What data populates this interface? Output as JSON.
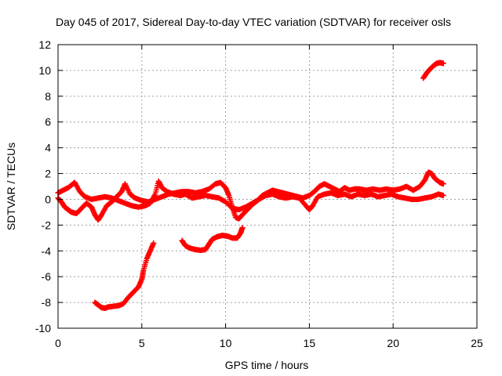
{
  "chart_data": {
    "type": "scatter",
    "title": "Day 045 of 2017, Sidereal Day-to-day VTEC variation (SDTVAR) for receiver osls",
    "xlabel": "GPS time / hours",
    "ylabel": "SDTVAR / TECUs",
    "xlim": [
      0,
      25
    ],
    "ylim": [
      -10,
      12
    ],
    "xticks": [
      0,
      5,
      10,
      15,
      20,
      25
    ],
    "yticks": [
      -10,
      -8,
      -6,
      -4,
      -2,
      0,
      2,
      4,
      6,
      8,
      10,
      12
    ],
    "grid": true,
    "marker": "plus",
    "color": "#ff0000",
    "series": [
      {
        "name": "upper satellite arc",
        "points": [
          [
            21.8,
            9.4
          ],
          [
            22.0,
            9.8
          ],
          [
            22.2,
            10.1
          ],
          [
            22.4,
            10.35
          ],
          [
            22.6,
            10.55
          ],
          [
            22.8,
            10.6
          ],
          [
            23.0,
            10.55
          ]
        ]
      },
      {
        "name": "low arc morning",
        "points": [
          [
            2.2,
            -8.0
          ],
          [
            2.4,
            -8.2
          ],
          [
            2.6,
            -8.4
          ],
          [
            2.8,
            -8.45
          ],
          [
            3.0,
            -8.35
          ],
          [
            3.3,
            -8.3
          ],
          [
            3.6,
            -8.25
          ],
          [
            3.9,
            -8.1
          ],
          [
            4.2,
            -7.6
          ],
          [
            4.5,
            -7.2
          ],
          [
            4.8,
            -6.8
          ],
          [
            5.0,
            -6.2
          ],
          [
            5.1,
            -5.5
          ],
          [
            5.3,
            -4.6
          ],
          [
            5.5,
            -4.0
          ],
          [
            5.7,
            -3.4
          ]
        ]
      },
      {
        "name": "mid arc",
        "points": [
          [
            7.4,
            -3.2
          ],
          [
            7.6,
            -3.6
          ],
          [
            7.9,
            -3.8
          ],
          [
            8.2,
            -3.9
          ],
          [
            8.5,
            -3.95
          ],
          [
            8.8,
            -3.9
          ],
          [
            9.0,
            -3.5
          ],
          [
            9.2,
            -3.1
          ],
          [
            9.5,
            -2.9
          ],
          [
            9.8,
            -2.8
          ],
          [
            10.1,
            -2.85
          ],
          [
            10.4,
            -3.0
          ],
          [
            10.7,
            -3.0
          ],
          [
            10.9,
            -2.6
          ],
          [
            11.0,
            -2.2
          ]
        ]
      },
      {
        "name": "near-zero arc A",
        "points": [
          [
            0.0,
            0.1
          ],
          [
            0.2,
            -0.2
          ],
          [
            0.4,
            -0.6
          ],
          [
            0.6,
            -0.8
          ],
          [
            0.8,
            -1.0
          ],
          [
            1.1,
            -1.1
          ],
          [
            1.4,
            -0.7
          ],
          [
            1.7,
            -0.3
          ],
          [
            2.0,
            -0.6
          ],
          [
            2.2,
            -1.2
          ],
          [
            2.4,
            -1.6
          ],
          [
            2.6,
            -1.2
          ],
          [
            2.9,
            -0.5
          ],
          [
            3.2,
            -0.2
          ],
          [
            3.5,
            0.2
          ],
          [
            3.8,
            0.6
          ],
          [
            4.0,
            1.2
          ],
          [
            4.3,
            0.4
          ],
          [
            4.6,
            0.1
          ],
          [
            5.0,
            -0.1
          ],
          [
            5.4,
            -0.2
          ],
          [
            5.8,
            0.0
          ],
          [
            6.2,
            0.2
          ],
          [
            6.6,
            0.4
          ],
          [
            7.0,
            0.5
          ],
          [
            7.4,
            0.6
          ],
          [
            7.8,
            0.6
          ],
          [
            8.2,
            0.5
          ],
          [
            8.6,
            0.6
          ],
          [
            9.0,
            0.8
          ],
          [
            9.4,
            1.2
          ],
          [
            9.7,
            1.3
          ],
          [
            10.0,
            0.9
          ],
          [
            10.2,
            0.3
          ],
          [
            10.4,
            -0.6
          ],
          [
            10.6,
            -1.4
          ],
          [
            10.8,
            -1.5
          ],
          [
            11.0,
            -1.2
          ],
          [
            11.3,
            -0.8
          ],
          [
            11.6,
            -0.4
          ],
          [
            11.9,
            -0.1
          ],
          [
            12.2,
            0.3
          ],
          [
            12.5,
            0.5
          ],
          [
            12.8,
            0.7
          ],
          [
            13.1,
            0.6
          ],
          [
            13.4,
            0.5
          ],
          [
            13.7,
            0.4
          ],
          [
            14.0,
            0.3
          ],
          [
            14.3,
            0.2
          ],
          [
            14.6,
            0.1
          ],
          [
            15.0,
            0.3
          ],
          [
            15.3,
            0.6
          ],
          [
            15.6,
            1.0
          ],
          [
            15.9,
            1.2
          ],
          [
            16.2,
            1.0
          ],
          [
            16.5,
            0.8
          ],
          [
            16.8,
            0.6
          ],
          [
            17.1,
            0.9
          ],
          [
            17.4,
            0.7
          ],
          [
            17.7,
            0.8
          ],
          [
            18.0,
            0.8
          ],
          [
            18.4,
            0.7
          ],
          [
            18.8,
            0.8
          ],
          [
            19.2,
            0.7
          ],
          [
            19.6,
            0.8
          ],
          [
            20.0,
            0.7
          ],
          [
            20.4,
            0.8
          ],
          [
            20.8,
            1.0
          ],
          [
            21.2,
            0.7
          ],
          [
            21.6,
            1.0
          ],
          [
            21.9,
            1.5
          ],
          [
            22.1,
            2.1
          ],
          [
            22.3,
            2.0
          ],
          [
            22.5,
            1.6
          ],
          [
            22.8,
            1.3
          ],
          [
            23.0,
            1.2
          ]
        ]
      },
      {
        "name": "near-zero arc B",
        "points": [
          [
            0.0,
            0.5
          ],
          [
            0.3,
            0.7
          ],
          [
            0.6,
            0.9
          ],
          [
            0.9,
            1.2
          ],
          [
            1.0,
            1.3
          ],
          [
            1.3,
            0.6
          ],
          [
            1.6,
            0.2
          ],
          [
            2.0,
            0.0
          ],
          [
            2.4,
            0.1
          ],
          [
            2.8,
            0.2
          ],
          [
            3.2,
            0.1
          ],
          [
            3.6,
            -0.1
          ],
          [
            4.0,
            -0.3
          ],
          [
            4.4,
            -0.5
          ],
          [
            4.8,
            -0.6
          ],
          [
            5.2,
            -0.5
          ],
          [
            5.5,
            -0.3
          ],
          [
            5.8,
            0.4
          ],
          [
            6.0,
            1.4
          ],
          [
            6.2,
            0.9
          ],
          [
            6.5,
            0.6
          ],
          [
            6.9,
            0.4
          ],
          [
            7.3,
            0.3
          ],
          [
            7.6,
            0.4
          ],
          [
            8.0,
            0.1
          ],
          [
            8.4,
            0.2
          ],
          [
            8.8,
            0.3
          ],
          [
            9.2,
            0.2
          ],
          [
            9.6,
            0.1
          ],
          [
            10.0,
            -0.2
          ],
          [
            10.4,
            -0.7
          ],
          [
            10.8,
            -0.8
          ],
          [
            11.2,
            -0.6
          ],
          [
            11.6,
            -0.3
          ],
          [
            12.0,
            0.0
          ],
          [
            12.4,
            0.3
          ],
          [
            12.8,
            0.4
          ],
          [
            13.2,
            0.2
          ],
          [
            13.6,
            0.1
          ],
          [
            14.0,
            0.2
          ],
          [
            14.4,
            0.1
          ],
          [
            14.8,
            -0.5
          ],
          [
            15.0,
            -0.8
          ],
          [
            15.2,
            -0.5
          ],
          [
            15.5,
            0.2
          ],
          [
            15.9,
            0.4
          ],
          [
            16.3,
            0.5
          ],
          [
            16.7,
            0.3
          ],
          [
            17.1,
            0.4
          ],
          [
            17.5,
            0.2
          ],
          [
            17.9,
            0.4
          ],
          [
            18.3,
            0.3
          ],
          [
            18.7,
            0.4
          ],
          [
            19.1,
            0.2
          ],
          [
            19.5,
            0.3
          ],
          [
            19.9,
            0.4
          ],
          [
            20.3,
            0.2
          ],
          [
            20.7,
            0.1
          ],
          [
            21.1,
            0.0
          ],
          [
            21.5,
            0.0
          ],
          [
            21.9,
            0.1
          ],
          [
            22.3,
            0.2
          ],
          [
            22.7,
            0.4
          ],
          [
            23.0,
            0.3
          ]
        ]
      }
    ]
  }
}
